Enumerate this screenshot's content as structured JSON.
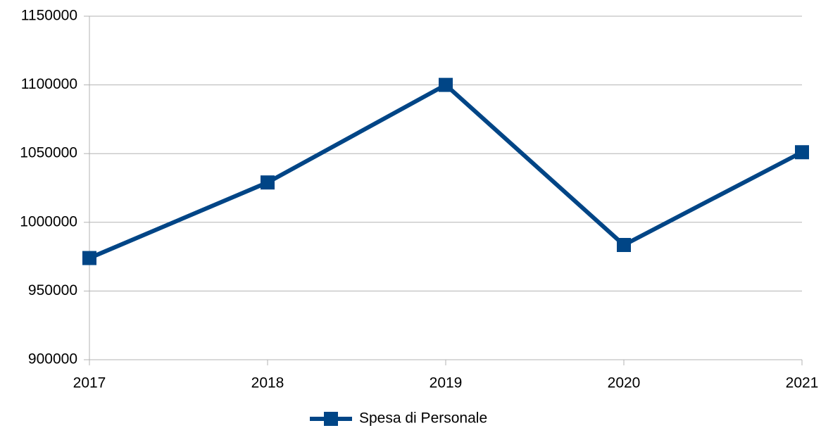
{
  "chart_data": {
    "type": "line",
    "categories": [
      "2017",
      "2018",
      "2019",
      "2020",
      "2021"
    ],
    "series": [
      {
        "name": "Spesa di Personale",
        "color": "#004586",
        "values": [
          974000,
          1029000,
          1100000,
          983500,
          1051000
        ]
      }
    ],
    "ylim": [
      900000,
      1150000
    ],
    "yticks": [
      900000,
      950000,
      1000000,
      1050000,
      1100000,
      1150000
    ],
    "grid": true,
    "legend": "bottom"
  }
}
